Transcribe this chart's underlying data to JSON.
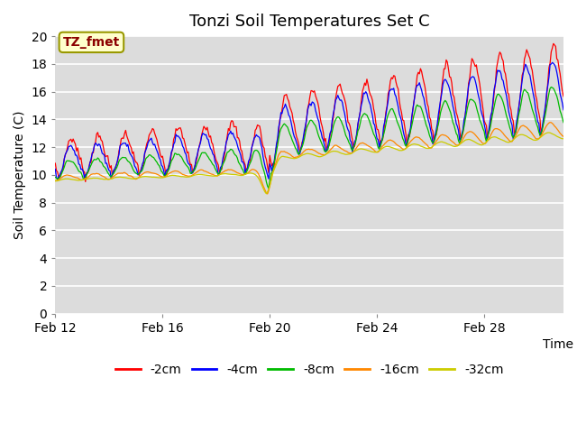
{
  "title": "Tonzi Soil Temperatures Set C",
  "xlabel": "Time",
  "ylabel": "Soil Temperature (C)",
  "ylim": [
    0,
    20
  ],
  "yticks": [
    0,
    2,
    4,
    6,
    8,
    10,
    12,
    14,
    16,
    18,
    20
  ],
  "plot_bg_color": "#dcdcdc",
  "annotation_text": "TZ_fmet",
  "annotation_color": "#8b0000",
  "annotation_bg": "#ffffcc",
  "series": [
    {
      "label": "-2cm",
      "color": "#ff0000"
    },
    {
      "label": "-4cm",
      "color": "#0000ff"
    },
    {
      "label": "-8cm",
      "color": "#00bb00"
    },
    {
      "label": "-16cm",
      "color": "#ff8800"
    },
    {
      "label": "-32cm",
      "color": "#cccc00"
    }
  ],
  "xtick_labels": [
    "Feb 12",
    "Feb 16",
    "Feb 20",
    "Feb 24",
    "Feb 28"
  ],
  "xtick_positions": [
    0,
    96,
    192,
    288,
    384
  ]
}
